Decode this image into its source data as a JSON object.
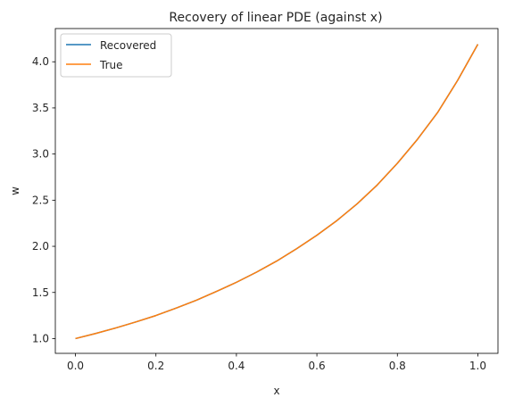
{
  "chart_data": {
    "type": "line",
    "title": "Recovery of linear PDE (against x)",
    "xlabel": "x",
    "ylabel": "w",
    "xlim": [
      -0.05,
      1.05
    ],
    "ylim": [
      0.84,
      4.36
    ],
    "xticks": [
      0.0,
      0.2,
      0.4,
      0.6,
      0.8,
      1.0
    ],
    "xtick_labels": [
      "0.0",
      "0.2",
      "0.4",
      "0.6",
      "0.8",
      "1.0"
    ],
    "yticks": [
      1.0,
      1.5,
      2.0,
      2.5,
      3.0,
      3.5,
      4.0
    ],
    "ytick_labels": [
      "1.0",
      "1.5",
      "2.0",
      "2.5",
      "3.0",
      "3.5",
      "4.0"
    ],
    "grid": false,
    "legend_position": "top-left",
    "x": [
      0.0,
      0.05,
      0.1,
      0.15,
      0.2,
      0.25,
      0.3,
      0.35,
      0.4,
      0.45,
      0.5,
      0.55,
      0.6,
      0.65,
      0.7,
      0.75,
      0.8,
      0.85,
      0.9,
      0.95,
      1.0
    ],
    "series": [
      {
        "name": "Recovered",
        "color": "#1f77b4",
        "values": [
          1.0,
          1.055,
          1.115,
          1.18,
          1.25,
          1.33,
          1.415,
          1.51,
          1.61,
          1.72,
          1.84,
          1.975,
          2.12,
          2.28,
          2.46,
          2.665,
          2.9,
          3.16,
          3.45,
          3.8,
          4.19
        ]
      },
      {
        "name": "True",
        "color": "#ff7f0e",
        "values": [
          1.0,
          1.055,
          1.115,
          1.18,
          1.25,
          1.33,
          1.415,
          1.51,
          1.61,
          1.72,
          1.84,
          1.975,
          2.12,
          2.28,
          2.46,
          2.665,
          2.9,
          3.16,
          3.45,
          3.8,
          4.19
        ]
      }
    ]
  }
}
